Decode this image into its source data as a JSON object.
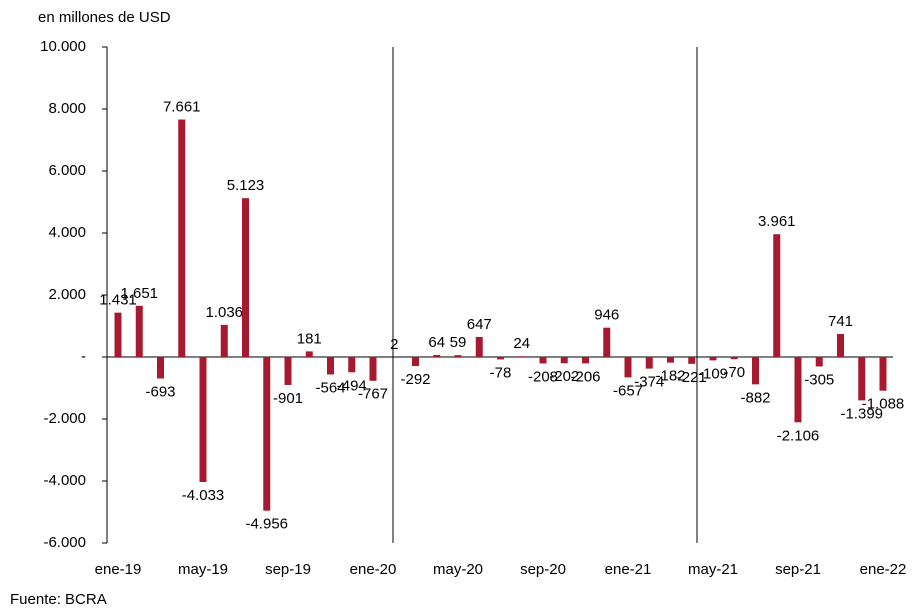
{
  "chart_data": {
    "type": "bar",
    "unit_label": "en millones de USD",
    "source": "Fuente: BCRA",
    "color": "#a6192e",
    "categories": [
      "ene-19",
      null,
      null,
      null,
      "may-19",
      null,
      null,
      null,
      "sep-19",
      null,
      null,
      null,
      "ene-20",
      null,
      null,
      null,
      "may-20",
      null,
      null,
      null,
      "sep-20",
      null,
      null,
      null,
      "ene-21",
      null,
      null,
      null,
      "may-21",
      null,
      null,
      null,
      "sep-21",
      null,
      null,
      null,
      "ene-22"
    ],
    "values": [
      1431,
      1651,
      -693,
      7661,
      -4033,
      1036,
      5123,
      -4956,
      -901,
      181,
      -564,
      -494,
      -767,
      2,
      -292,
      64,
      59,
      647,
      -78,
      24,
      -208,
      -202,
      -206,
      946,
      -657,
      -374,
      -182,
      -221,
      -109,
      -70,
      -882,
      3961,
      -2106,
      -305,
      741,
      -1399,
      -1088
    ],
    "value_labels": [
      "1.431",
      "1.651",
      "-693",
      "7.661",
      "-4.033",
      "1.036",
      "5.123",
      "-4.956",
      "-901",
      "181",
      "-564",
      "-494",
      "-767",
      "2",
      "-292",
      "64",
      "59",
      "647",
      "-78",
      "24",
      "-208",
      "-202",
      "-206",
      "946",
      "-657",
      "-374",
      "-182",
      "-221",
      "-109",
      "-70",
      "-882",
      "3.961",
      "-2.106",
      "-305",
      "741",
      "-1.399",
      "-1.088"
    ],
    "ylim": [
      -6000,
      10000
    ],
    "yticks": [
      {
        "value": -6000,
        "label": "-6.000"
      },
      {
        "value": -4000,
        "label": "-4.000"
      },
      {
        "value": -2000,
        "label": "-2.000"
      },
      {
        "value": 0,
        "label": "-"
      },
      {
        "value": 2000,
        "label": "2.000"
      },
      {
        "value": 4000,
        "label": "4.000"
      },
      {
        "value": 6000,
        "label": "6.000"
      },
      {
        "value": 8000,
        "label": "8.000"
      },
      {
        "value": 10000,
        "label": "10.000"
      }
    ]
  }
}
